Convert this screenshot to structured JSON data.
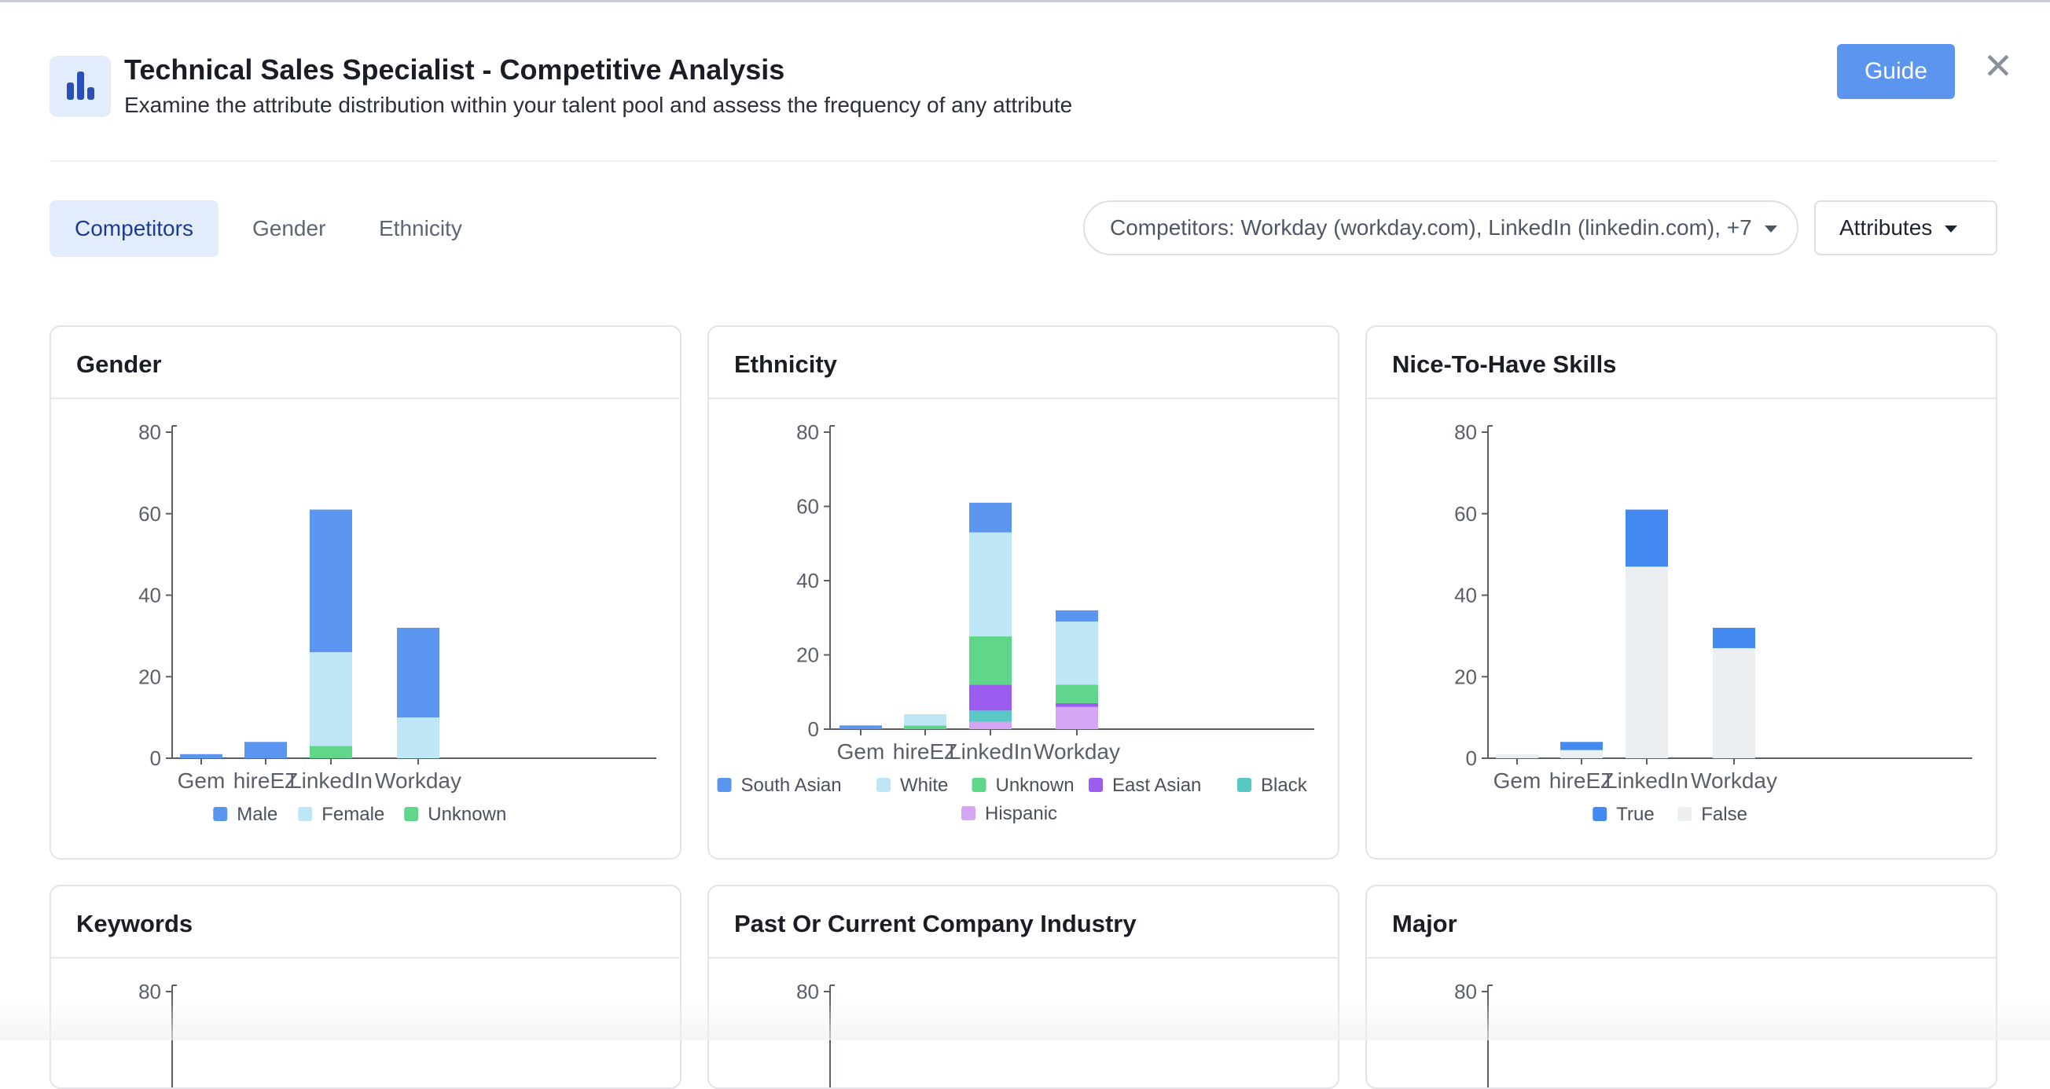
{
  "header": {
    "title": "Technical Sales Specialist - Competitive Analysis",
    "subtitle": "Examine the attribute distribution within your talent pool and assess the frequency of any attribute",
    "guide_label": "Guide",
    "close_label": "✕",
    "icon": "bar-chart-icon"
  },
  "tabs": [
    {
      "label": "Competitors",
      "active": true
    },
    {
      "label": "Gender",
      "active": false
    },
    {
      "label": "Ethnicity",
      "active": false
    }
  ],
  "filters": {
    "competitors_label": "Competitors: Workday (workday.com), LinkedIn (linkedin.com), +7",
    "attributes_label": "Attributes"
  },
  "colors": {
    "accent": "#5b95ef",
    "male": "#5b95ef",
    "female": "#bfe6f7",
    "unknown": "#5fd68a",
    "south_asian": "#5b95ef",
    "white": "#bfe6f7",
    "eth_unknown": "#5fd68a",
    "east_asian": "#9c5cf0",
    "black": "#58c8c4",
    "hispanic": "#d5a6f4",
    "true": "#4489f0",
    "false": "#eceff2"
  },
  "cards": [
    {
      "title": "Gender"
    },
    {
      "title": "Ethnicity"
    },
    {
      "title": "Nice-To-Have Skills"
    },
    {
      "title": "Keywords"
    },
    {
      "title": "Past Or Current Company Industry"
    },
    {
      "title": "Major"
    }
  ],
  "chart_data": [
    {
      "type": "bar",
      "stacked": true,
      "title": "Gender",
      "categories": [
        "Gem",
        "hireEZ",
        "LinkedIn",
        "Workday"
      ],
      "ylim": [
        0,
        80
      ],
      "yticks": [
        0,
        20,
        40,
        60,
        80
      ],
      "legend_position": "bottom",
      "series": [
        {
          "name": "Male",
          "color": "#5b95ef",
          "values": [
            1,
            4,
            35,
            22
          ]
        },
        {
          "name": "Female",
          "color": "#bfe6f7",
          "values": [
            0,
            0,
            23,
            10
          ]
        },
        {
          "name": "Unknown",
          "color": "#5fd68a",
          "values": [
            0,
            0,
            3,
            0
          ]
        }
      ]
    },
    {
      "type": "bar",
      "stacked": true,
      "title": "Ethnicity",
      "categories": [
        "Gem",
        "hireEZ",
        "LinkedIn",
        "Workday"
      ],
      "ylim": [
        0,
        80
      ],
      "yticks": [
        0,
        20,
        40,
        60,
        80
      ],
      "legend_position": "bottom",
      "series": [
        {
          "name": "South Asian",
          "color": "#5b95ef",
          "values": [
            1,
            0,
            8,
            3
          ]
        },
        {
          "name": "White",
          "color": "#bfe6f7",
          "values": [
            0,
            3,
            28,
            17
          ]
        },
        {
          "name": "Unknown",
          "color": "#5fd68a",
          "values": [
            0,
            1,
            13,
            5
          ]
        },
        {
          "name": "East Asian",
          "color": "#9c5cf0",
          "values": [
            0,
            0,
            7,
            1
          ]
        },
        {
          "name": "Black",
          "color": "#58c8c4",
          "values": [
            0,
            0,
            3,
            0
          ]
        },
        {
          "name": "Hispanic",
          "color": "#d5a6f4",
          "values": [
            0,
            0,
            2,
            6
          ]
        }
      ]
    },
    {
      "type": "bar",
      "stacked": true,
      "title": "Nice-To-Have Skills",
      "categories": [
        "Gem",
        "hireEZ",
        "LinkedIn",
        "Workday"
      ],
      "ylim": [
        0,
        80
      ],
      "yticks": [
        0,
        20,
        40,
        60,
        80
      ],
      "legend_position": "bottom",
      "series": [
        {
          "name": "True",
          "color": "#4489f0",
          "values": [
            0,
            2,
            14,
            5
          ]
        },
        {
          "name": "False",
          "color": "#eceff2",
          "values": [
            1,
            2,
            47,
            27
          ]
        }
      ]
    }
  ]
}
